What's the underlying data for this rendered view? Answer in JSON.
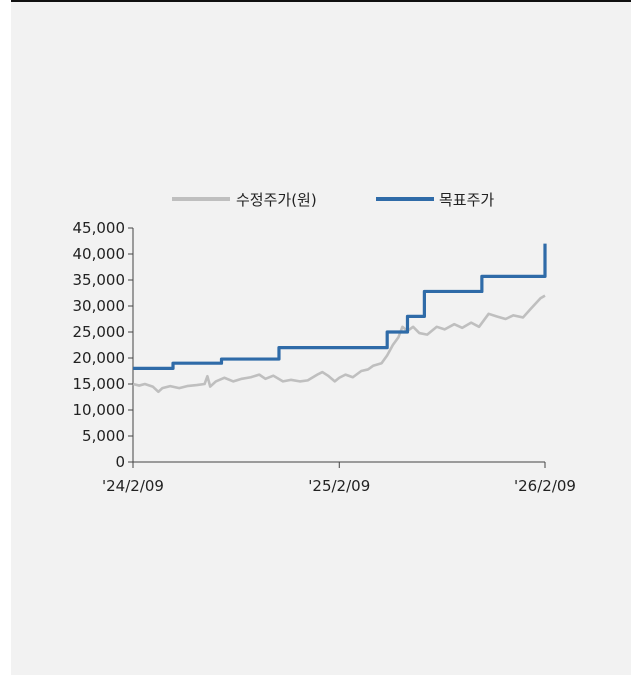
{
  "chart_data": {
    "type": "line",
    "title": "",
    "xlabel": "",
    "ylabel": "",
    "ylim": [
      0,
      45000
    ],
    "y_ticks": [
      "45,000",
      "40,000",
      "35,000",
      "30,000",
      "25,000",
      "20,000",
      "15,000",
      "10,000",
      "5,000",
      "0"
    ],
    "y_tick_values": [
      45000,
      40000,
      35000,
      30000,
      25000,
      20000,
      15000,
      10000,
      5000,
      0
    ],
    "x_ticks": [
      "'24/2/09",
      "'25/2/09",
      "'26/2/09"
    ],
    "x_range": [
      "2024-02-09",
      "2026-02-09"
    ],
    "grid": false,
    "legend_position": "top",
    "series": [
      {
        "name": "수정주가(원)",
        "color": "#bfbfbf",
        "style": "line",
        "points": [
          [
            "2024-02-09",
            15000
          ],
          [
            "2024-02-20",
            14700
          ],
          [
            "2024-03-01",
            15000
          ],
          [
            "2024-03-15",
            14500
          ],
          [
            "2024-03-25",
            13500
          ],
          [
            "2024-04-01",
            14200
          ],
          [
            "2024-04-15",
            14600
          ],
          [
            "2024-05-01",
            14200
          ],
          [
            "2024-05-15",
            14600
          ],
          [
            "2024-06-01",
            14800
          ],
          [
            "2024-06-15",
            15000
          ],
          [
            "2024-06-20",
            16500
          ],
          [
            "2024-06-25",
            14500
          ],
          [
            "2024-07-05",
            15500
          ],
          [
            "2024-07-20",
            16200
          ],
          [
            "2024-08-05",
            15500
          ],
          [
            "2024-08-20",
            16000
          ],
          [
            "2024-09-05",
            16300
          ],
          [
            "2024-09-20",
            16800
          ],
          [
            "2024-10-01",
            16000
          ],
          [
            "2024-10-15",
            16600
          ],
          [
            "2024-11-01",
            15500
          ],
          [
            "2024-11-15",
            15800
          ],
          [
            "2024-12-01",
            15500
          ],
          [
            "2024-12-15",
            15700
          ],
          [
            "2025-01-01",
            16800
          ],
          [
            "2025-01-10",
            17300
          ],
          [
            "2025-01-20",
            16600
          ],
          [
            "2025-02-01",
            15500
          ],
          [
            "2025-02-09",
            16200
          ],
          [
            "2025-02-20",
            16800
          ],
          [
            "2025-03-05",
            16300
          ],
          [
            "2025-03-20",
            17500
          ],
          [
            "2025-04-01",
            17800
          ],
          [
            "2025-04-10",
            18500
          ],
          [
            "2025-04-25",
            19000
          ],
          [
            "2025-05-05",
            20500
          ],
          [
            "2025-05-15",
            22500
          ],
          [
            "2025-05-25",
            24000
          ],
          [
            "2025-06-01",
            26000
          ],
          [
            "2025-06-10",
            25200
          ],
          [
            "2025-06-20",
            26000
          ],
          [
            "2025-07-01",
            24800
          ],
          [
            "2025-07-15",
            24500
          ],
          [
            "2025-08-01",
            26000
          ],
          [
            "2025-08-15",
            25500
          ],
          [
            "2025-09-01",
            26500
          ],
          [
            "2025-09-15",
            25800
          ],
          [
            "2025-10-01",
            26800
          ],
          [
            "2025-10-15",
            26000
          ],
          [
            "2025-11-01",
            28500
          ],
          [
            "2025-11-15",
            28000
          ],
          [
            "2025-12-01",
            27500
          ],
          [
            "2025-12-15",
            28200
          ],
          [
            "2026-01-01",
            27800
          ],
          [
            "2026-01-15",
            29500
          ],
          [
            "2026-02-01",
            31500
          ],
          [
            "2026-02-09",
            32000
          ]
        ]
      },
      {
        "name": "목표주가",
        "color": "#2f6ba8",
        "style": "step",
        "points": [
          [
            "2024-02-09",
            18000
          ],
          [
            "2024-04-20",
            19000
          ],
          [
            "2024-07-15",
            19800
          ],
          [
            "2024-10-25",
            22000
          ],
          [
            "2025-05-05",
            25000
          ],
          [
            "2025-06-10",
            28000
          ],
          [
            "2025-07-10",
            32800
          ],
          [
            "2025-10-20",
            35700
          ],
          [
            "2026-02-09",
            42000
          ]
        ]
      }
    ]
  }
}
